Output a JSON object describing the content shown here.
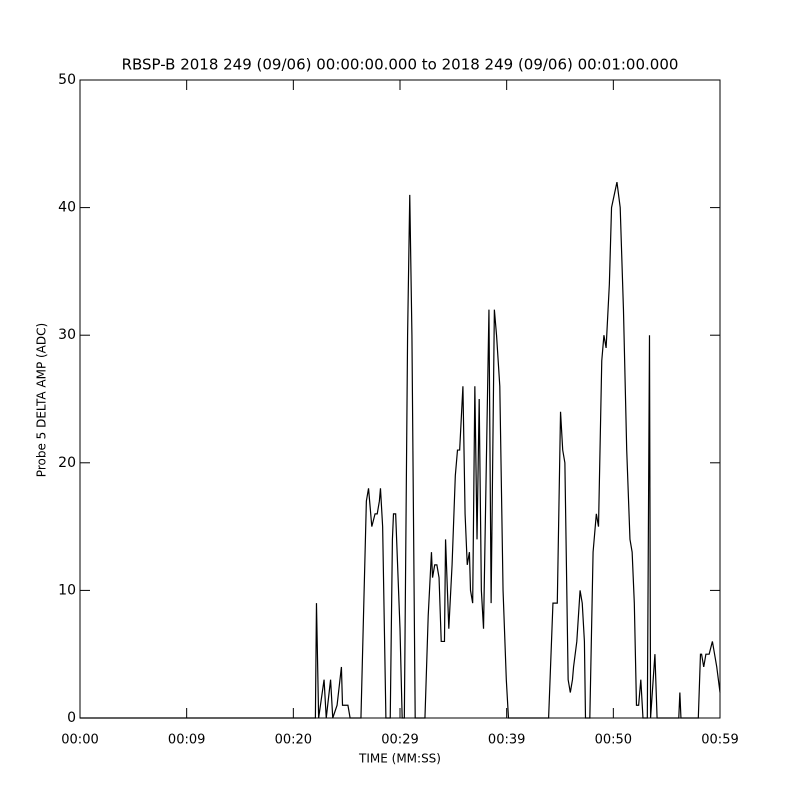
{
  "chart_data": {
    "type": "line",
    "title": "RBSP-B 2018 249 (09/06) 00:00:00.000 to 2018 249 (09/06) 00:01:00.000",
    "x_label": "TIME (MM:SS)",
    "y_label": "Probe 5 DELTA AMP (ADC)",
    "color": "#000000",
    "x": [
      0,
      21.7,
      21.8,
      22.0,
      22.5,
      22.7,
      23.1,
      23.3,
      23.7,
      24.1,
      24.2,
      24.7,
      24.9,
      25.9,
      26.4,
      26.6,
      26.9,
      27.2,
      27.4,
      27.6,
      27.7,
      27.9,
      28.2,
      28.6,
      28.8,
      28.9,
      29.1,
      29.5,
      29.7,
      29.9,
      30.2,
      30.4,
      30.6,
      30.9,
      31.8,
      32.1,
      32.4,
      32.5,
      32.7,
      32.9,
      33.1,
      33.3,
      33.6,
      33.7,
      34.0,
      34.3,
      34.6,
      34.8,
      35.0,
      35.3,
      35.5,
      35.7,
      35.9,
      36.0,
      36.2,
      36.4,
      36.6,
      36.8,
      37.0,
      37.2,
      37.4,
      37.7,
      37.9,
      38.2,
      38.4,
      38.7,
      39.0,
      39.3,
      39.5,
      43.2,
      43.6,
      44.0,
      44.3,
      44.5,
      44.7,
      45.0,
      45.2,
      45.4,
      45.5,
      45.8,
      46.1,
      46.3,
      46.5,
      46.6,
      47.0,
      47.3,
      47.6,
      47.8,
      48.1,
      48.3,
      48.5,
      48.8,
      49.0,
      49.5,
      49.8,
      50.1,
      50.4,
      50.7,
      50.9,
      51.1,
      51.3,
      51.5,
      51.7,
      51.9,
      52.3,
      52.5,
      52.6,
      53.0,
      53.2,
      55.2,
      55.3,
      55.4,
      57.0,
      57.2,
      57.3,
      57.5,
      57.7,
      58.0,
      58.3,
      58.5,
      58.7,
      59.0
    ],
    "values": [
      0,
      0,
      9,
      0,
      3,
      0,
      3,
      0,
      1,
      4,
      1,
      1,
      0,
      0,
      17,
      18,
      15,
      16,
      16,
      17,
      18,
      15,
      0,
      0,
      14,
      16,
      16,
      7,
      0,
      0,
      30,
      41,
      30,
      0,
      0,
      8,
      13,
      11,
      12,
      12,
      11,
      6,
      6,
      14,
      7,
      12,
      19,
      21,
      21,
      26,
      16,
      12,
      13,
      10,
      9,
      26,
      14,
      25,
      10,
      7,
      17,
      32,
      9,
      32,
      30,
      26,
      10,
      3,
      0,
      0,
      9,
      9,
      24,
      21,
      20,
      3,
      2,
      3,
      4,
      6,
      10,
      9,
      6,
      0,
      0,
      13,
      16,
      15,
      28,
      30,
      29,
      34,
      40,
      42,
      40,
      32,
      21,
      14,
      13,
      9,
      1,
      1,
      3,
      0,
      0,
      30,
      0,
      5,
      0,
      0,
      2,
      0,
      0,
      5,
      5,
      4,
      5,
      5,
      6,
      5,
      4,
      2
    ],
    "xlim": [
      0,
      59
    ],
    "xticks": [
      {
        "value": 0,
        "label": "00:00"
      },
      {
        "value": 9.833,
        "label": "00:09"
      },
      {
        "value": 19.667,
        "label": "00:20"
      },
      {
        "value": 29.5,
        "label": "00:29"
      },
      {
        "value": 39.333,
        "label": "00:39"
      },
      {
        "value": 49.167,
        "label": "00:50"
      },
      {
        "value": 59,
        "label": "00:59"
      }
    ],
    "ylim": [
      0,
      50
    ],
    "yticks": [
      0,
      10,
      20,
      30,
      40,
      50
    ]
  }
}
